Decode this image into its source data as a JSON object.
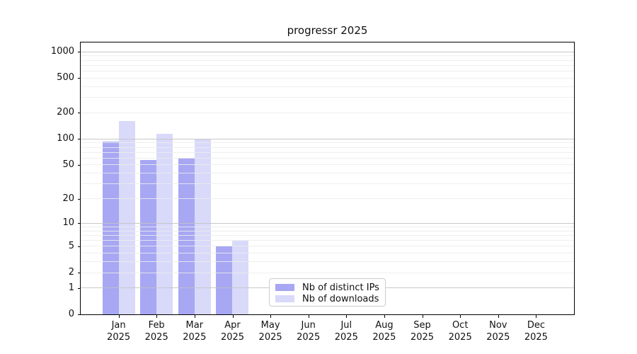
{
  "chart_data": {
    "type": "bar",
    "title": "progressr 2025",
    "categories": [
      "Jan",
      "Feb",
      "Mar",
      "Apr",
      "May",
      "Jun",
      "Jul",
      "Aug",
      "Sep",
      "Oct",
      "Nov",
      "Dec"
    ],
    "x_sublabel": "2025",
    "series": [
      {
        "name": "Nb of distinct IPs",
        "color": "#a7a7f3",
        "values": [
          94,
          57,
          60,
          5,
          0,
          0,
          0,
          0,
          0,
          0,
          0,
          0
        ]
      },
      {
        "name": "Nb of downloads",
        "color": "#d9d9fa",
        "values": [
          160,
          114,
          100,
          6,
          0,
          0,
          0,
          0,
          0,
          0,
          0,
          0
        ]
      }
    ],
    "xlabel": "",
    "ylabel": "",
    "yscale": "log1p",
    "yticks": [
      0,
      1,
      2,
      5,
      10,
      20,
      50,
      100,
      200,
      500,
      1000
    ],
    "ylim": [
      0,
      1280
    ],
    "grid": {
      "major_lines": [
        1,
        10,
        100,
        1000
      ],
      "minor_lines": [
        2,
        3,
        4,
        5,
        6,
        7,
        8,
        9,
        20,
        30,
        40,
        50,
        60,
        70,
        80,
        90,
        200,
        300,
        400,
        500,
        600,
        700,
        800,
        900
      ],
      "major_color": "#c3c3c3",
      "minor_color": "#ececec"
    },
    "legend_position": "bottom-center",
    "axis_color": "#000000",
    "text_color": "#111111"
  }
}
